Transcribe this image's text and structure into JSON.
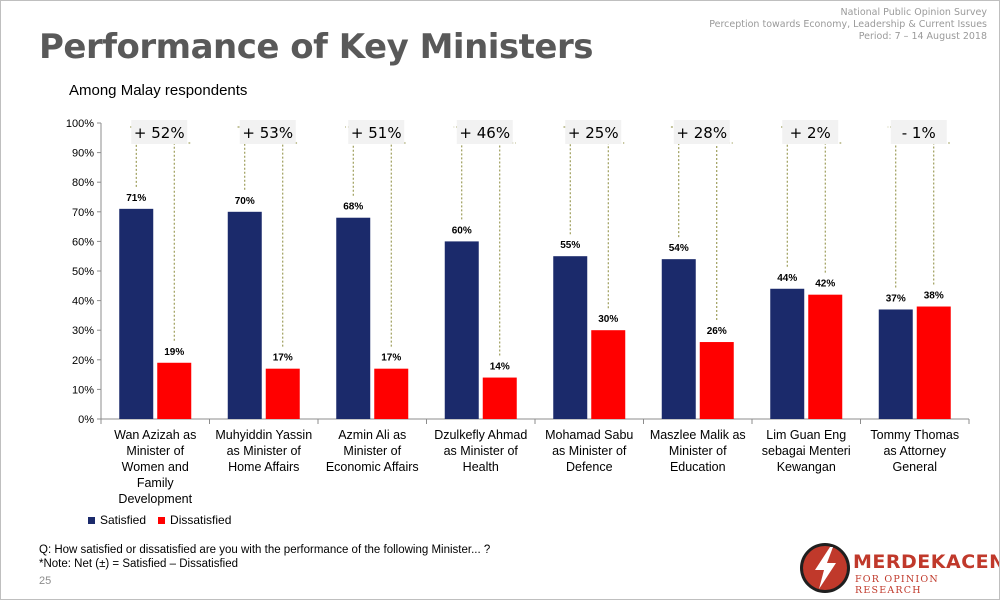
{
  "header": {
    "survey": "National Public Opinion Survey",
    "topic": "Perception towards Economy, Leadership & Current Issues",
    "period": "Period: 7 – 14 August 2018"
  },
  "title": "Performance of Key Ministers",
  "subtitle": "Among Malay respondents",
  "question": "Q: How satisfied or dissatisfied are you with the performance of the following Minister... ?",
  "note": "*Note: Net (±) = Satisfied – Dissatisfied",
  "page_number": "25",
  "logo": {
    "name": "MERDEKACENTER",
    "sub": "FOR OPINION RESEARCH",
    "colors": {
      "red": "#c0392b",
      "dark": "#1f1f1f"
    }
  },
  "colors": {
    "satisfied": "#1b2a6b",
    "dissatisfied": "#ff0000"
  },
  "chart_data": {
    "type": "bar",
    "categories": [
      [
        "Wan Azizah as",
        "Minister of",
        "Women and",
        "Family",
        "Development"
      ],
      [
        "Muhyiddin Yassin",
        "as Minister of",
        "Home Affairs"
      ],
      [
        "Azmin Ali as",
        "Minister of",
        "Economic Affairs"
      ],
      [
        "Dzulkefly Ahmad",
        "as Minister of",
        "Health"
      ],
      [
        "Mohamad Sabu",
        "as Minister of",
        "Defence"
      ],
      [
        "Maszlee Malik as",
        "Minister of",
        "Education"
      ],
      [
        "Lim Guan Eng",
        "sebagai Menteri",
        "Kewangan"
      ],
      [
        "Tommy Thomas",
        "as Attorney",
        "General"
      ]
    ],
    "series": [
      {
        "name": "Satisfied",
        "values": [
          71,
          70,
          68,
          60,
          55,
          54,
          44,
          37
        ],
        "labels": [
          "71%",
          "70%",
          "68%",
          "60%",
          "55%",
          "54%",
          "44%",
          "37%"
        ]
      },
      {
        "name": "Dissatisfied",
        "values": [
          19,
          17,
          17,
          14,
          30,
          26,
          42,
          38
        ],
        "labels": [
          "19%",
          "17%",
          "17%",
          "14%",
          "30%",
          "26%",
          "42%",
          "38%"
        ]
      }
    ],
    "net_labels": [
      "+ 52%",
      "+ 53%",
      "+ 51%",
      "+ 46%",
      "+ 25%",
      "+ 28%",
      "+ 2%",
      "-  1%"
    ],
    "ylim": [
      0,
      100
    ],
    "yticks": [
      "0%",
      "10%",
      "20%",
      "30%",
      "40%",
      "50%",
      "60%",
      "70%",
      "80%",
      "90%",
      "100%"
    ],
    "legend": "bottom-left"
  }
}
